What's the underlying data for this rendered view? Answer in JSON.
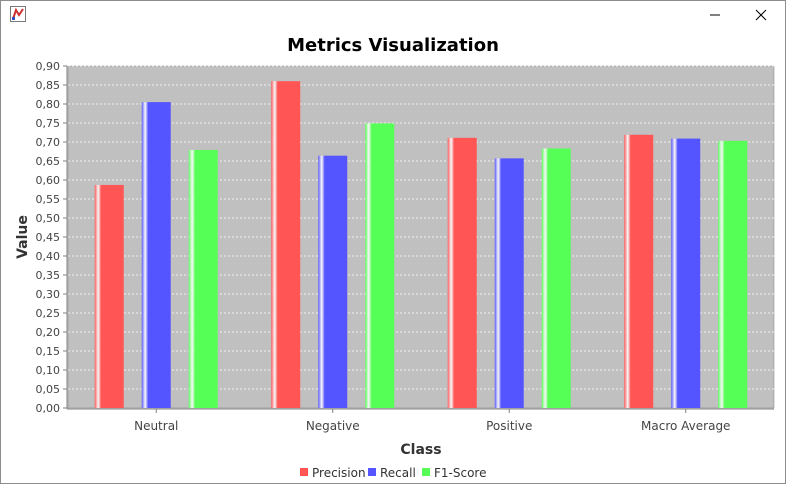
{
  "window": {
    "icon": "java-app-icon",
    "controls": [
      "minimize-icon",
      "maximize-icon",
      "close-icon"
    ]
  },
  "colors": {
    "plot_background": "#c0c0c0",
    "gridline": "#ffffff",
    "Precision": "#ff5555",
    "Recall": "#5555ff",
    "F1-Score": "#55ff55"
  },
  "chart_data": {
    "type": "bar",
    "title": "Metrics Visualization",
    "xlabel": "Class",
    "ylabel": "Value",
    "categories": [
      "Neutral",
      "Negative",
      "Positive",
      "Macro Average"
    ],
    "series": [
      {
        "name": "Precision",
        "values": [
          0.587,
          0.86,
          0.711,
          0.719
        ]
      },
      {
        "name": "Recall",
        "values": [
          0.805,
          0.664,
          0.657,
          0.709
        ]
      },
      {
        "name": "F1-Score",
        "values": [
          0.679,
          0.749,
          0.683,
          0.703
        ]
      }
    ],
    "ylim": [
      0,
      0.9
    ],
    "yticks": [
      "0,00",
      "0,05",
      "0,10",
      "0,15",
      "0,20",
      "0,25",
      "0,30",
      "0,35",
      "0,40",
      "0,45",
      "0,50",
      "0,55",
      "0,60",
      "0,65",
      "0,70",
      "0,75",
      "0,80",
      "0,85",
      "0,90"
    ],
    "grid": true,
    "legend": "bottom-center"
  }
}
